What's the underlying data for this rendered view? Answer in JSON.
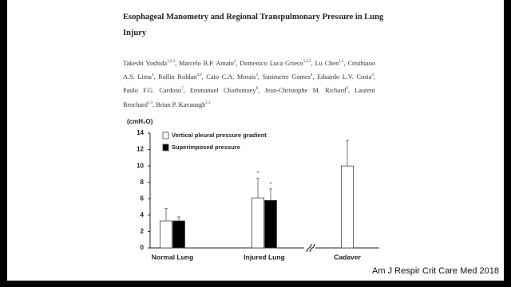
{
  "paper": {
    "title": "Esophageal Manometry and Regional Transpulmonary Pressure in Lung Injury",
    "separator": ",",
    "authors": [
      {
        "name": "Takeshi Yoshida",
        "aff": "1,2,3"
      },
      {
        "name": "Marcelo B.P. Amato",
        "aff": "4"
      },
      {
        "name": "Domenico Luca Grieco",
        "aff": "1,2,5"
      },
      {
        "name": "Lu Chen",
        "aff": "1,2"
      },
      {
        "name": "Cristhiano A.S. Lima",
        "aff": "4"
      },
      {
        "name": "Rollin Roldan",
        "aff": "4,6"
      },
      {
        "name": "Caio C.A. Morais",
        "aff": "4"
      },
      {
        "name": "Susimeire Gomes",
        "aff": "4"
      },
      {
        "name": "Eduardo L.V. Costa",
        "aff": "4"
      },
      {
        "name": "Paulo F.G. Cardoso",
        "aff": "7"
      },
      {
        "name": "Emmanuel Charbonney",
        "aff": "8"
      },
      {
        "name": "Jean-Christophe M. Richard",
        "aff": "9"
      },
      {
        "name": "Laurent Brochard",
        "aff": "1,3"
      },
      {
        "name": "Brian P. Kavanagh",
        "aff": "2,3"
      }
    ],
    "citation": "Am J Respir Crit Care Med 2018"
  },
  "chart_data": {
    "type": "bar",
    "y_label": "(cmH₂O)",
    "categories": [
      "Normal Lung",
      "Injured Lung",
      "Cadaver"
    ],
    "series": [
      {
        "name": "Vertical pleural pressure gradient",
        "color": "#ffffff",
        "values": [
          3.3,
          6.1,
          10.0
        ],
        "errors": [
          1.5,
          2.4,
          3.1
        ],
        "markers": [
          null,
          "*",
          null
        ]
      },
      {
        "name": "Superimposed pressure",
        "color": "#000000",
        "values": [
          3.3,
          5.8,
          null
        ],
        "errors": [
          0.5,
          1.4,
          null
        ],
        "markers": [
          null,
          "*",
          null
        ]
      }
    ],
    "ylim": [
      0,
      14
    ],
    "yticks": [
      0,
      2,
      4,
      6,
      8,
      10,
      12,
      14
    ],
    "grid": false
  }
}
